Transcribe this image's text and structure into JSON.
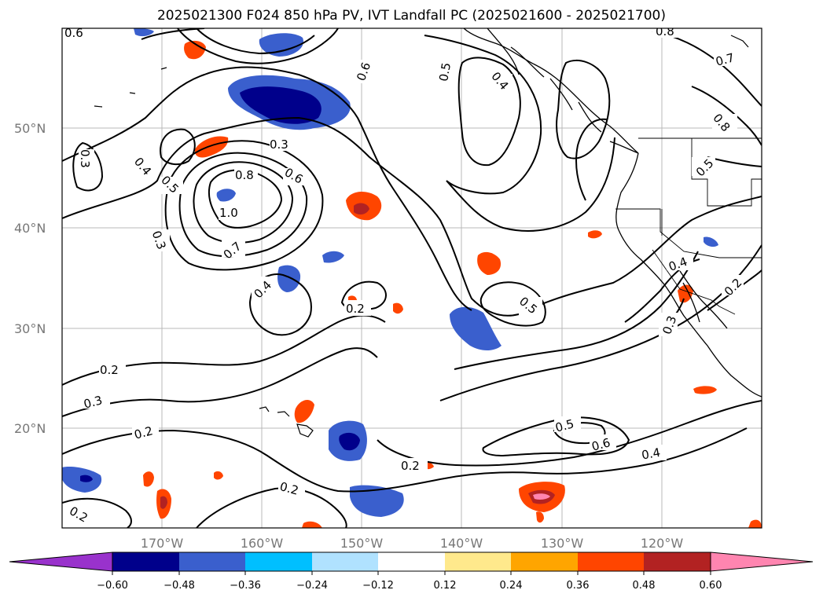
{
  "title": "2025021300 F024 850 hPa PV, IVT Landfall PC (2025021600 - 2025021700)",
  "map": {
    "lat_labels": [
      "50°N",
      "40°N",
      "30°N",
      "20°N"
    ],
    "lon_labels": [
      "170°W",
      "160°W",
      "150°W",
      "140°W",
      "130°W",
      "120°W"
    ],
    "contour_labels": [
      "0.6",
      "0.5",
      "0.4",
      "0.3",
      "0.3",
      "0.4",
      "0.5",
      "0.8",
      "0.6",
      "1.0",
      "0.7",
      "0.3",
      "0.4",
      "0.2",
      "0.5",
      "0.2",
      "0.3",
      "0.2",
      "0.5",
      "0.6",
      "0.4",
      "0.2",
      "0.2",
      "0.2",
      "0.7",
      "0.8",
      "0.8",
      "0.4",
      "0.3",
      "0.2",
      "0.6",
      "0.5"
    ]
  },
  "colorbar": {
    "colors": [
      "#9932cc",
      "#00008b",
      "#3a5fcd",
      "#00bfff",
      "#b0e2ff",
      "#ffffff",
      "#ffe98c",
      "#ffa500",
      "#ff4500",
      "#b22222",
      "#ff85b0",
      "#ff85b0"
    ],
    "tick_labels": [
      "−0.60",
      "−0.48",
      "−0.36",
      "−0.24",
      "−0.12",
      "0.12",
      "0.24",
      "0.36",
      "0.48",
      "0.60"
    ]
  }
}
